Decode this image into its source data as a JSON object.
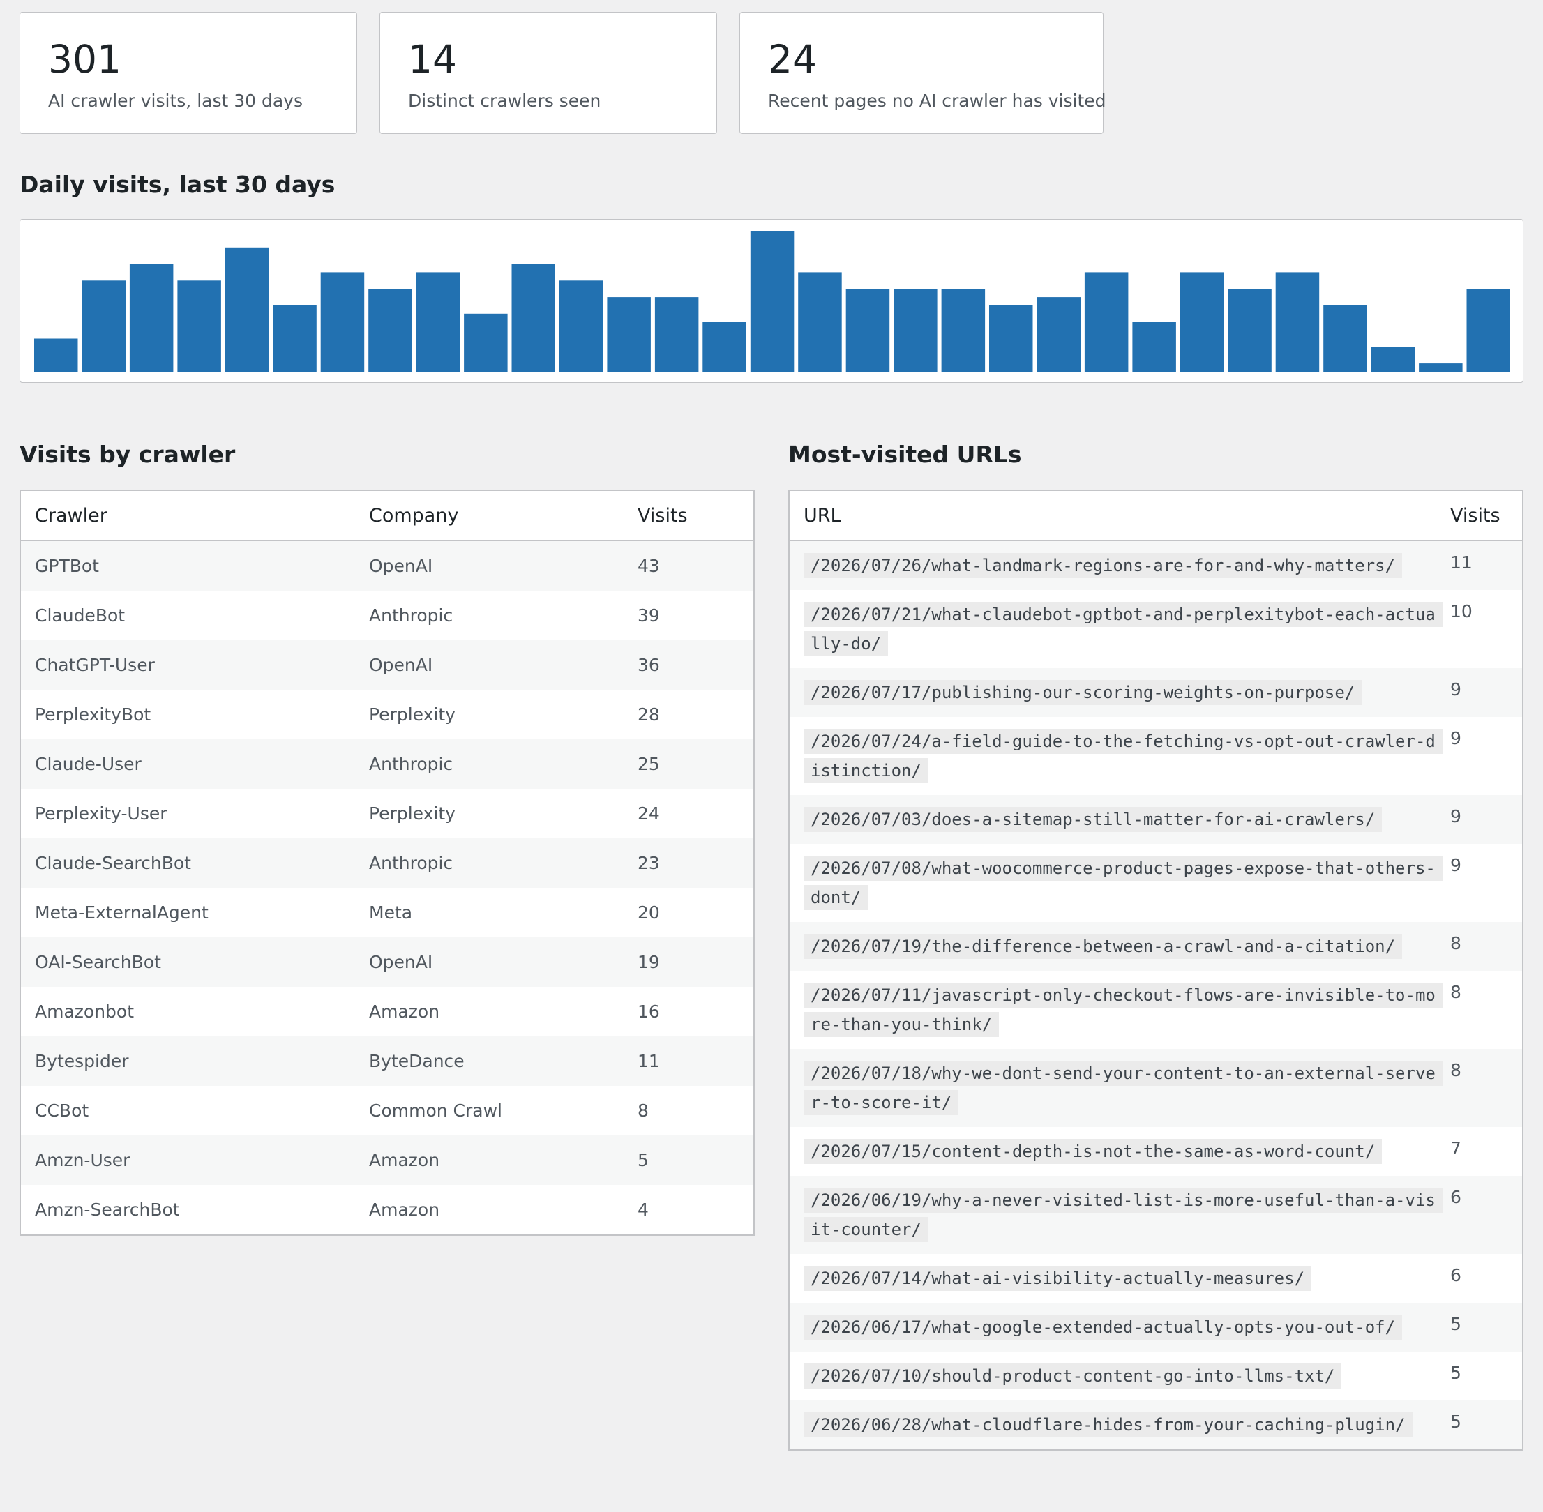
{
  "stats": [
    {
      "value": "301",
      "label": "AI crawler visits, last 30 days"
    },
    {
      "value": "14",
      "label": "Distinct crawlers seen"
    },
    {
      "value": "24",
      "label": "Recent pages no AI crawler has visited"
    }
  ],
  "daily": {
    "title": "Daily visits, last 30 days",
    "bar_color": "#2271b1"
  },
  "chart_data": {
    "type": "bar",
    "title": "Daily visits, last 30 days",
    "values": [
      4,
      11,
      13,
      11,
      15,
      8,
      12,
      10,
      12,
      7,
      13,
      11,
      9,
      9,
      6,
      17,
      12,
      10,
      10,
      10,
      8,
      9,
      12,
      6,
      12,
      10,
      12,
      8,
      3,
      1,
      10
    ],
    "ylim": [
      0,
      17
    ]
  },
  "crawlers": {
    "title": "Visits by crawler",
    "headers": {
      "crawler": "Crawler",
      "company": "Company",
      "visits": "Visits"
    },
    "rows": [
      {
        "crawler": "GPTBot",
        "company": "OpenAI",
        "visits": "43"
      },
      {
        "crawler": "ClaudeBot",
        "company": "Anthropic",
        "visits": "39"
      },
      {
        "crawler": "ChatGPT-User",
        "company": "OpenAI",
        "visits": "36"
      },
      {
        "crawler": "PerplexityBot",
        "company": "Perplexity",
        "visits": "28"
      },
      {
        "crawler": "Claude-User",
        "company": "Anthropic",
        "visits": "25"
      },
      {
        "crawler": "Perplexity-User",
        "company": "Perplexity",
        "visits": "24"
      },
      {
        "crawler": "Claude-SearchBot",
        "company": "Anthropic",
        "visits": "23"
      },
      {
        "crawler": "Meta-ExternalAgent",
        "company": "Meta",
        "visits": "20"
      },
      {
        "crawler": "OAI-SearchBot",
        "company": "OpenAI",
        "visits": "19"
      },
      {
        "crawler": "Amazonbot",
        "company": "Amazon",
        "visits": "16"
      },
      {
        "crawler": "Bytespider",
        "company": "ByteDance",
        "visits": "11"
      },
      {
        "crawler": "CCBot",
        "company": "Common Crawl",
        "visits": "8"
      },
      {
        "crawler": "Amzn-User",
        "company": "Amazon",
        "visits": "5"
      },
      {
        "crawler": "Amzn-SearchBot",
        "company": "Amazon",
        "visits": "4"
      }
    ]
  },
  "urls": {
    "title": "Most-visited URLs",
    "headers": {
      "url": "URL",
      "visits": "Visits"
    },
    "rows": [
      {
        "url": "/2026/07/26/what-landmark-regions-are-for-and-why-matters/",
        "visits": "11"
      },
      {
        "url": "/2026/07/21/what-claudebot-gptbot-and-perplexitybot-each-actually-do/",
        "visits": "10"
      },
      {
        "url": "/2026/07/17/publishing-our-scoring-weights-on-purpose/",
        "visits": "9"
      },
      {
        "url": "/2026/07/24/a-field-guide-to-the-fetching-vs-opt-out-crawler-distinction/",
        "visits": "9"
      },
      {
        "url": "/2026/07/03/does-a-sitemap-still-matter-for-ai-crawlers/",
        "visits": "9"
      },
      {
        "url": "/2026/07/08/what-woocommerce-product-pages-expose-that-others-dont/",
        "visits": "9"
      },
      {
        "url": "/2026/07/19/the-difference-between-a-crawl-and-a-citation/",
        "visits": "8"
      },
      {
        "url": "/2026/07/11/javascript-only-checkout-flows-are-invisible-to-more-than-you-think/",
        "visits": "8"
      },
      {
        "url": "/2026/07/18/why-we-dont-send-your-content-to-an-external-server-to-score-it/",
        "visits": "8"
      },
      {
        "url": "/2026/07/15/content-depth-is-not-the-same-as-word-count/",
        "visits": "7"
      },
      {
        "url": "/2026/06/19/why-a-never-visited-list-is-more-useful-than-a-visit-counter/",
        "visits": "6"
      },
      {
        "url": "/2026/07/14/what-ai-visibility-actually-measures/",
        "visits": "6"
      },
      {
        "url": "/2026/06/17/what-google-extended-actually-opts-you-out-of/",
        "visits": "5"
      },
      {
        "url": "/2026/07/10/should-product-content-go-into-llms-txt/",
        "visits": "5"
      },
      {
        "url": "/2026/06/28/what-cloudflare-hides-from-your-caching-plugin/",
        "visits": "5"
      }
    ]
  }
}
